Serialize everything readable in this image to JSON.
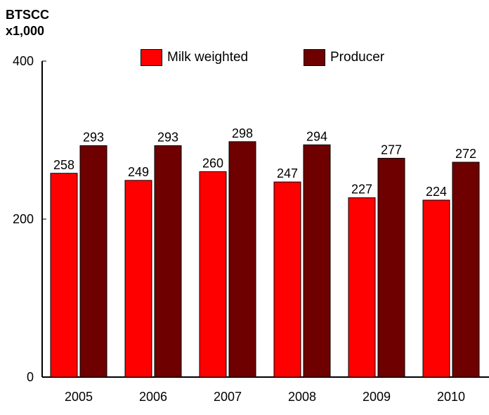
{
  "chart_data": {
    "type": "bar",
    "ylabel": [
      "BTSCC",
      "x1,000"
    ],
    "categories": [
      "2005",
      "2006",
      "2007",
      "2008",
      "2009",
      "2010"
    ],
    "series": [
      {
        "name": "Milk weighted",
        "values": [
          258,
          249,
          260,
          247,
          227,
          224
        ],
        "color": "#ff0000"
      },
      {
        "name": "Producer",
        "values": [
          293,
          293,
          298,
          294,
          277,
          272
        ],
        "color": "#6e0000"
      }
    ],
    "ylim": [
      0,
      400
    ],
    "yticks": [
      0,
      200,
      400
    ],
    "grid": false,
    "legend": "top"
  }
}
